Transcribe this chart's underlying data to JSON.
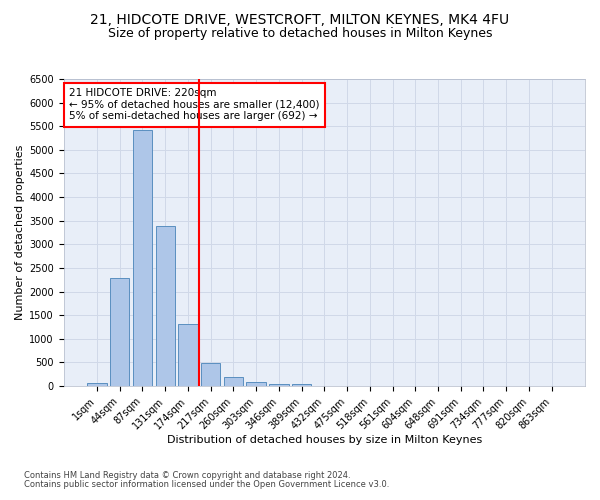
{
  "title1": "21, HIDCOTE DRIVE, WESTCROFT, MILTON KEYNES, MK4 4FU",
  "title2": "Size of property relative to detached houses in Milton Keynes",
  "xlabel": "Distribution of detached houses by size in Milton Keynes",
  "ylabel": "Number of detached properties",
  "footer1": "Contains HM Land Registry data © Crown copyright and database right 2024.",
  "footer2": "Contains public sector information licensed under the Open Government Licence v3.0.",
  "categories": [
    "1sqm",
    "44sqm",
    "87sqm",
    "131sqm",
    "174sqm",
    "217sqm",
    "260sqm",
    "303sqm",
    "346sqm",
    "389sqm",
    "432sqm",
    "475sqm",
    "518sqm",
    "561sqm",
    "604sqm",
    "648sqm",
    "691sqm",
    "734sqm",
    "777sqm",
    "820sqm",
    "863sqm"
  ],
  "values": [
    75,
    2280,
    5420,
    3380,
    1310,
    490,
    200,
    95,
    55,
    35,
    0,
    0,
    0,
    0,
    0,
    0,
    0,
    0,
    0,
    0,
    0
  ],
  "bar_color": "#aec6e8",
  "bar_edge_color": "#5a8fc0",
  "vline_idx": 5,
  "vline_color": "red",
  "annotation_title": "21 HIDCOTE DRIVE: 220sqm",
  "annotation_line1": "← 95% of detached houses are smaller (12,400)",
  "annotation_line2": "5% of semi-detached houses are larger (692) →",
  "ylim_max": 6500,
  "ytick_step": 500,
  "grid_color": "#d0d8e8",
  "bg_color": "#e8eef8",
  "title1_fontsize": 10,
  "title2_fontsize": 9,
  "axis_fontsize": 8,
  "tick_fontsize": 7,
  "annot_fontsize": 7.5
}
